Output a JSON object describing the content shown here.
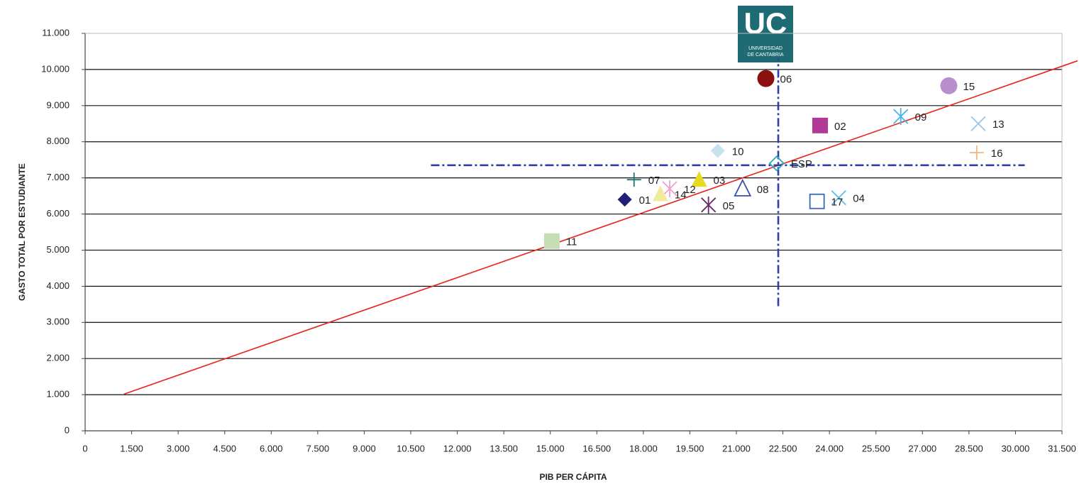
{
  "chart_data": {
    "type": "scatter",
    "x_label": "PIB PER CÁPITA",
    "y_label": "GASTO TOTAL POR ESTUDIANTE",
    "logo": {
      "text": "UC",
      "subtitle": [
        "UNIVERSIDAD",
        "DE CANTABRIA"
      ],
      "color": "#1f6b73"
    },
    "xlim": [
      0,
      31500
    ],
    "ylim": [
      0,
      11000
    ],
    "xticks": [
      0,
      {
        "value": 1500,
        "label": "1.500"
      },
      {
        "value": 3000,
        "label": "3.000"
      },
      {
        "value": 4500,
        "label": "4.500"
      },
      {
        "value": 6000,
        "label": "6.000"
      },
      {
        "value": 7500,
        "label": "7.500"
      },
      {
        "value": 9000,
        "label": "9.000"
      },
      {
        "value": 10500,
        "label": "10.500"
      },
      {
        "value": 12000,
        "label": "12.000"
      },
      {
        "value": 13500,
        "label": "13.500"
      },
      {
        "value": 15000,
        "label": "15.000"
      },
      {
        "value": 16500,
        "label": "16.500"
      },
      {
        "value": 18000,
        "label": "18.000"
      },
      {
        "value": 19500,
        "label": "19.500"
      },
      {
        "value": 21000,
        "label": "21.000"
      },
      {
        "value": 22500,
        "label": "22.500"
      },
      {
        "value": 24000,
        "label": "24.000"
      },
      {
        "value": 25500,
        "label": "25.500"
      },
      {
        "value": 27000,
        "label": "27.000"
      },
      {
        "value": 28500,
        "label": "28.500"
      },
      {
        "value": 30000,
        "label": "30.000"
      },
      {
        "value": 31500,
        "label": "31.500"
      }
    ],
    "yticks": [
      0,
      {
        "value": 1000,
        "label": "1.000"
      },
      {
        "value": 2000,
        "label": "2.000"
      },
      {
        "value": 3000,
        "label": "3.000"
      },
      {
        "value": 4000,
        "label": "4.000"
      },
      {
        "value": 5000,
        "label": "5.000"
      },
      {
        "value": 6000,
        "label": "6.000"
      },
      {
        "value": 7000,
        "label": "7.000"
      },
      {
        "value": 8000,
        "label": "8.000"
      },
      {
        "value": 9000,
        "label": "9.000"
      },
      {
        "value": 10000,
        "label": "10.000"
      },
      {
        "value": 11000,
        "label": "11.000"
      }
    ],
    "grid": true,
    "points": [
      {
        "name": "01",
        "x": 17400,
        "y": 6400,
        "color": "#1f1f78",
        "marker": "diamond"
      },
      {
        "name": "02",
        "x": 23700,
        "y": 8450,
        "color": "#b03a96",
        "marker": "square"
      },
      {
        "name": "03",
        "x": 19800,
        "y": 6950,
        "color": "#e6dc1e",
        "marker": "triangle"
      },
      {
        "name": "04",
        "x": 24300,
        "y": 6450,
        "color": "#5bbfe6",
        "marker": "x"
      },
      {
        "name": "05",
        "x": 20100,
        "y": 6250,
        "color": "#6a2b6b",
        "marker": "asterisk"
      },
      {
        "name": "06",
        "x": 21950,
        "y": 9750,
        "color": "#8b1010",
        "marker": "circle"
      },
      {
        "name": "07",
        "x": 17700,
        "y": 6950,
        "color": "#1a7878",
        "marker": "plus"
      },
      {
        "name": "08",
        "x": 21200,
        "y": 6700,
        "color": "#3b4fa8",
        "marker": "triangle-open"
      },
      {
        "name": "09",
        "x": 26300,
        "y": 8700,
        "color": "#45b6e6",
        "marker": "asterisk"
      },
      {
        "name": "10",
        "x": 20400,
        "y": 7750,
        "color": "#c5e3ec",
        "marker": "diamond"
      },
      {
        "name": "11",
        "x": 15050,
        "y": 5250,
        "color": "#c5deb3",
        "marker": "square"
      },
      {
        "name": "12",
        "x": 18850,
        "y": 6700,
        "color": "#f0a0c8",
        "marker": "asterisk"
      },
      {
        "name": "13",
        "x": 28800,
        "y": 8500,
        "color": "#9ac4e8",
        "marker": "x"
      },
      {
        "name": "14",
        "x": 18550,
        "y": 6550,
        "color": "#f2ea9c",
        "marker": "triangle"
      },
      {
        "name": "15",
        "x": 27850,
        "y": 9550,
        "color": "#b88fcc",
        "marker": "circle"
      },
      {
        "name": "16",
        "x": 28750,
        "y": 7700,
        "color": "#f5b27a",
        "marker": "plus"
      },
      {
        "name": "17",
        "x": 23600,
        "y": 6350,
        "color": "#3b66b8",
        "marker": "square-open"
      },
      {
        "name": "ESP",
        "x": 22300,
        "y": 7400,
        "color": "#2aa8b8",
        "marker": "diamond-open"
      }
    ],
    "trend_line": {
      "x": [
        1250,
        32000
      ],
      "y": [
        1015,
        10240
      ],
      "color": "#e8231e"
    },
    "reference_lines": [
      {
        "axis": "x",
        "value": 22350,
        "from": 3450,
        "to": 10300,
        "color": "#2a3fa8"
      },
      {
        "axis": "y",
        "value": 7350,
        "from": 11150,
        "to": 30300,
        "color": "#2a3fa8"
      }
    ]
  }
}
